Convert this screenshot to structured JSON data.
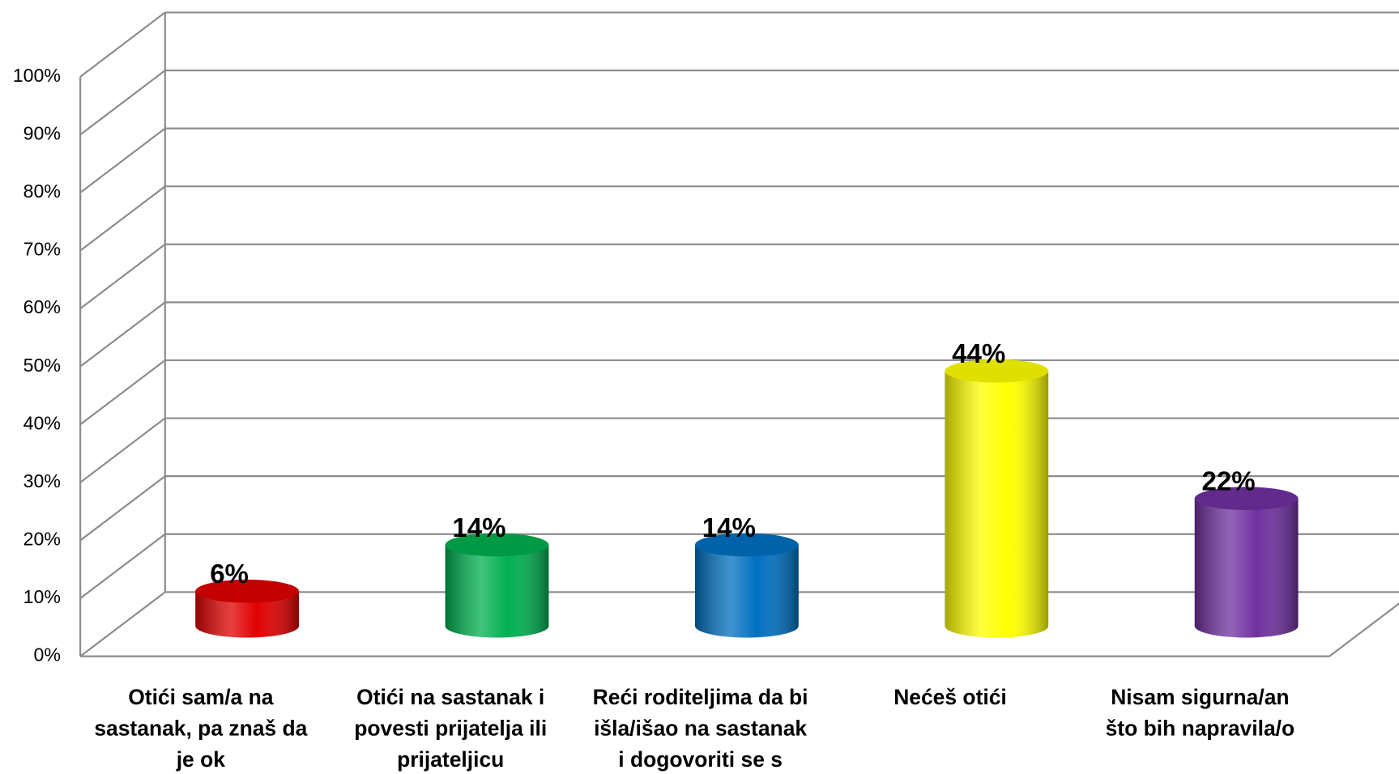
{
  "chart_data": {
    "type": "bar",
    "categories": [
      "Otići sam/a na sastanak, pa znaš da je ok",
      "Otići na sastanak i povesti prijatelja ili prijateljicu",
      "Reći roditeljima da bi išla/išao na sastanak i dogovoriti se s njima",
      "Nećeš otići",
      "Nisam sigurna/an što bih napravila/o"
    ],
    "values": [
      6,
      14,
      14,
      44,
      22
    ],
    "value_labels": [
      "6%",
      "14%",
      "14%",
      "44%",
      "22%"
    ],
    "colors": [
      "#e00000",
      "#00b050",
      "#0070c0",
      "#ffff00",
      "#7030a0"
    ],
    "ylim": [
      0,
      100
    ],
    "yticks": [
      {
        "value": 0,
        "label": "0%"
      },
      {
        "value": 10,
        "label": "10%"
      },
      {
        "value": 20,
        "label": "20%"
      },
      {
        "value": 30,
        "label": "30%"
      },
      {
        "value": 40,
        "label": "40%"
      },
      {
        "value": 50,
        "label": "50%"
      },
      {
        "value": 60,
        "label": "60%"
      },
      {
        "value": 70,
        "label": "70%"
      },
      {
        "value": 80,
        "label": "80%"
      },
      {
        "value": 90,
        "label": "90%"
      },
      {
        "value": 100,
        "label": "100%"
      }
    ],
    "grid": true
  }
}
